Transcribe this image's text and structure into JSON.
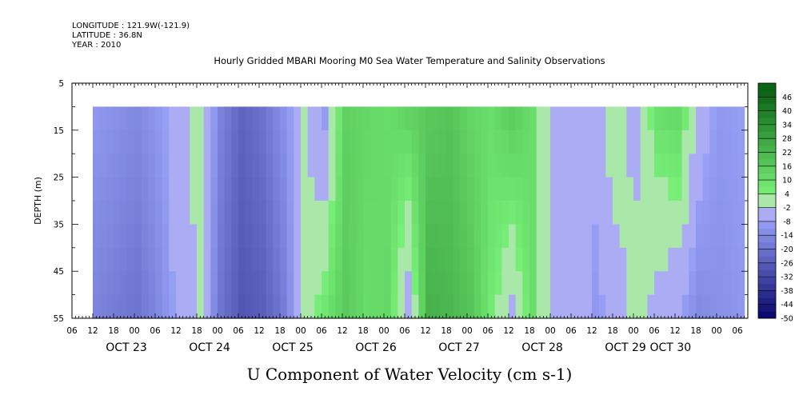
{
  "header": {
    "longitude": "LONGITUDE : 121.9W(-121.9)",
    "latitude": "LATITUDE : 36.8N",
    "year": "YEAR : 2010"
  },
  "chart_data": {
    "type": "heatmap",
    "title": "Hourly Gridded MBARI Mooring M0 Sea Water Temperature and Salinity Observations",
    "xlabel": "U Component of Water Velocity (cm s-1)",
    "ylabel": "DEPTH (m)",
    "x_start_hours_from_oct23_00": -18,
    "x_end_hours_from_oct23_00": 177,
    "data_start_hours_from_oct23_00": -12,
    "data_end_hours_from_oct23_00": 176,
    "ylim": [
      5,
      55
    ],
    "y_inverted": true,
    "data_depth_range": [
      10,
      55
    ],
    "y_ticks": [
      "5",
      "15",
      "25",
      "35",
      "45",
      "55"
    ],
    "y_tick_values": [
      5,
      15,
      25,
      35,
      45,
      55
    ],
    "x_hour_ticks": [
      "06",
      "12",
      "18",
      "00",
      "06",
      "12",
      "18",
      "00",
      "06",
      "12",
      "18",
      "00",
      "06",
      "12",
      "18",
      "00",
      "06",
      "12",
      "18",
      "00",
      "06",
      "12",
      "18",
      "00",
      "06",
      "12",
      "18",
      "00",
      "06",
      "12",
      "18",
      "00",
      "06"
    ],
    "x_day_labels": [
      "OCT 23",
      "OCT 24",
      "OCT 25",
      "OCT 26",
      "OCT 27",
      "OCT 28",
      "OCT 29",
      "OCT 30"
    ],
    "x_day_label_hours": [
      -12,
      12,
      36,
      60,
      84,
      108,
      132,
      145
    ],
    "colorbar": {
      "ticks": [
        "46",
        "40",
        "34",
        "28",
        "22",
        "16",
        "10",
        "4",
        "-2",
        "-8",
        "-14",
        "-20",
        "-26",
        "-32",
        "-38",
        "-44",
        "-50"
      ],
      "tick_values": [
        46,
        40,
        34,
        28,
        22,
        16,
        10,
        4,
        -2,
        -8,
        -14,
        -20,
        -26,
        -32,
        -38,
        -44,
        -50
      ],
      "min": -50,
      "max": 52,
      "step": 3
    },
    "column_profiles": {
      "hours": [
        -12,
        -6,
        0,
        6,
        12,
        18,
        24,
        30,
        36,
        42,
        48,
        54,
        60,
        66,
        72,
        78,
        84,
        90,
        96,
        102,
        108,
        114,
        120,
        126,
        132,
        138,
        144,
        150,
        156,
        162,
        168,
        176
      ],
      "u_surface": [
        -10,
        -12,
        -14,
        -10,
        -4,
        2,
        -16,
        -24,
        -20,
        -12,
        -2,
        -10,
        14,
        12,
        10,
        14,
        16,
        18,
        12,
        10,
        16,
        10,
        -8,
        -4,
        -6,
        4,
        -6,
        10,
        12,
        -4,
        -10,
        -8
      ],
      "u_bottom": [
        -16,
        -18,
        -20,
        -14,
        -6,
        -2,
        -20,
        -28,
        -26,
        -18,
        0,
        8,
        16,
        10,
        12,
        -8,
        24,
        22,
        18,
        6,
        -4,
        10,
        -8,
        -2,
        -10,
        -6,
        2,
        -6,
        -8,
        -14,
        -12,
        -10
      ]
    }
  }
}
